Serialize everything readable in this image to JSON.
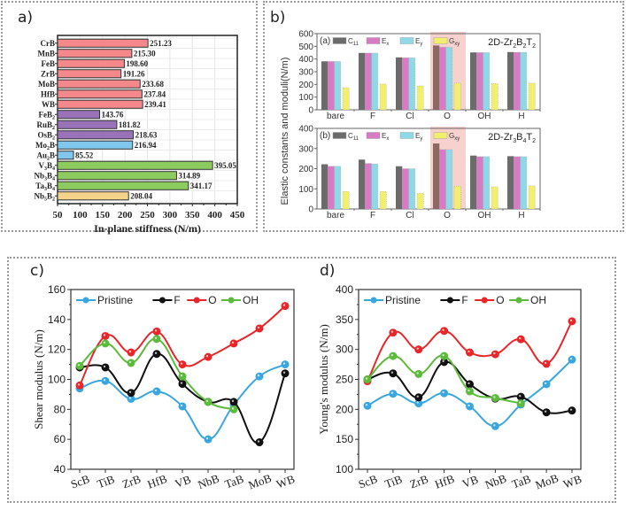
{
  "panels": {
    "a": {
      "label": "a)"
    },
    "b": {
      "label": "b)"
    },
    "c": {
      "label": "c)"
    },
    "d": {
      "label": "d)"
    }
  },
  "chart_data": [
    {
      "id": "a",
      "type": "bar",
      "orientation": "horizontal",
      "title": "",
      "xlabel": "In-plane stiffness (N/m)",
      "ylabel": "",
      "xlim": [
        50,
        450
      ],
      "xticks": [
        50,
        100,
        150,
        200,
        250,
        300,
        350,
        400,
        450
      ],
      "grid": true,
      "categories": [
        "CrB",
        "MnB",
        "FeB",
        "ZrB",
        "MoB",
        "HfB",
        "WB",
        "FeB2",
        "RuB2",
        "OsB2",
        "Mo2B",
        "Au2B",
        "V3B4",
        "Nb3B4",
        "Ta3B4",
        "Nb5B2"
      ],
      "category_labels": [
        {
          "base": "CrB",
          "sub": ""
        },
        {
          "base": "MnB",
          "sub": ""
        },
        {
          "base": "FeB",
          "sub": ""
        },
        {
          "base": "ZrB",
          "sub": ""
        },
        {
          "base": "MoB",
          "sub": ""
        },
        {
          "base": "HfB",
          "sub": ""
        },
        {
          "base": "WB",
          "sub": ""
        },
        {
          "base": "FeB",
          "sub": "2"
        },
        {
          "base": "RuB",
          "sub": "2"
        },
        {
          "base": "OsB",
          "sub": "2"
        },
        {
          "base": "Mo",
          "sub": "2",
          "tail": "B"
        },
        {
          "base": "Au",
          "sub": "2",
          "tail": "B"
        },
        {
          "base": "V",
          "sub": "3",
          "tail": "B",
          "sub2": "4"
        },
        {
          "base": "Nb",
          "sub": "3",
          "tail": "B",
          "sub2": "4"
        },
        {
          "base": "Ta",
          "sub": "3",
          "tail": "B",
          "sub2": "4"
        },
        {
          "base": "Nb",
          "sub": "5",
          "tail": "B",
          "sub2": "2"
        }
      ],
      "values": [
        251.23,
        215.3,
        198.6,
        191.26,
        233.68,
        237.84,
        239.41,
        143.76,
        181.82,
        218.63,
        216.94,
        85.52,
        395.05,
        314.89,
        341.17,
        208.04
      ],
      "value_labels": [
        "251.23",
        "215.30",
        "198.60",
        "191.26",
        "233.68",
        "237.84",
        "239.41",
        "143.76",
        "181.82",
        "218.63",
        "216.94",
        "85.52",
        "395.05",
        "314.89",
        "341.17",
        "208.04"
      ],
      "groups": [
        "MB",
        "MB",
        "MB",
        "MB",
        "MB",
        "MB",
        "MB",
        "MB2",
        "MB2",
        "MB2",
        "M2B",
        "M2B",
        "M3B4",
        "M3B4",
        "M3B4",
        "M5B2"
      ],
      "group_colors": {
        "MB": "#f4888a",
        "MB2": "#9a72b8",
        "M2B": "#7fc7ec",
        "M3B4": "#8ccc5e",
        "M5B2": "#f4d48a"
      }
    },
    {
      "id": "b-top",
      "type": "bar",
      "title": "2D-Zr2B2T2",
      "title_parts": {
        "base": "2D-Zr",
        "s1": "2",
        "m": "B",
        "s2": "2",
        "t": "T",
        "s3": "2"
      },
      "subplot_tag": "(a)",
      "ylabel": "Elastic constants and moduli(N/m)",
      "ylim": [
        0,
        600
      ],
      "yticks": [
        0,
        100,
        200,
        300,
        400,
        500,
        600
      ],
      "categories": [
        "bare",
        "F",
        "Cl",
        "O",
        "OH",
        "H"
      ],
      "highlight_category": "O",
      "series": [
        {
          "name": "C11",
          "sub": "11",
          "base": "C",
          "color": "#6b6b6b",
          "values": [
            382,
            448,
            413,
            507,
            452,
            455
          ]
        },
        {
          "name": "Ex",
          "sub": "x",
          "base": "E",
          "color": "#d97bc4",
          "values": [
            381,
            447,
            410,
            493,
            451,
            453
          ]
        },
        {
          "name": "Ey",
          "sub": "y",
          "base": "E",
          "color": "#8fd8e6",
          "values": [
            381,
            447,
            410,
            493,
            451,
            453
          ]
        },
        {
          "name": "Gxy",
          "sub": "xy",
          "base": "G",
          "color": "#f2ee6e",
          "values": [
            175,
            203,
            188,
            210,
            207,
            210
          ]
        }
      ]
    },
    {
      "id": "b-bottom",
      "type": "bar",
      "title": "2D-Zr3B4T2",
      "title_parts": {
        "base": "2D-Zr",
        "s1": "3",
        "m": "B",
        "s2": "4",
        "t": "T",
        "s3": "2"
      },
      "subplot_tag": "(b)",
      "ylabel": "Elastic constants and moduli(N/m)",
      "ylim": [
        0,
        400
      ],
      "yticks": [
        0,
        100,
        200,
        300,
        400
      ],
      "categories": [
        "bare",
        "F",
        "Cl",
        "O",
        "OH",
        "H"
      ],
      "highlight_category": "O",
      "series": [
        {
          "name": "C11",
          "sub": "11",
          "base": "C",
          "color": "#6b6b6b",
          "values": [
            222,
            245,
            212,
            325,
            265,
            262
          ]
        },
        {
          "name": "Ex",
          "sub": "x",
          "base": "E",
          "color": "#d97bc4",
          "values": [
            212,
            226,
            200,
            295,
            260,
            260
          ]
        },
        {
          "name": "Ey",
          "sub": "y",
          "base": "E",
          "color": "#8fd8e6",
          "values": [
            212,
            224,
            200,
            295,
            260,
            260
          ]
        },
        {
          "name": "Gxy",
          "sub": "xy",
          "base": "G",
          "color": "#f2ee6e",
          "values": [
            87,
            87,
            78,
            113,
            110,
            115
          ]
        }
      ]
    },
    {
      "id": "c",
      "type": "line",
      "title": "",
      "xlabel": "",
      "ylabel": "Shear modulus (N/m)",
      "ylim": [
        40,
        160
      ],
      "yticks": [
        40,
        60,
        80,
        100,
        120,
        140,
        160
      ],
      "categories": [
        "ScB",
        "TiB",
        "ZrB",
        "HfB",
        "VB",
        "NbB",
        "TaB",
        "MoB",
        "WB"
      ],
      "legend": "top-left",
      "series": [
        {
          "name": "Pristine",
          "color": "#3aa6e0",
          "values": [
            94,
            99,
            87,
            92,
            82,
            60,
            83,
            102,
            110
          ]
        },
        {
          "name": "F",
          "color": "#111111",
          "values": [
            108,
            108,
            91,
            117,
            97,
            85,
            85,
            58,
            104
          ]
        },
        {
          "name": "O",
          "color": "#e8262a",
          "values": [
            96,
            129,
            118,
            132,
            110,
            115,
            124,
            134,
            149
          ]
        },
        {
          "name": "OH",
          "color": "#5cba3c",
          "values": [
            109,
            124,
            111,
            127,
            102,
            85,
            80,
            null,
            null
          ]
        }
      ]
    },
    {
      "id": "d",
      "type": "line",
      "title": "",
      "xlabel": "",
      "ylabel": "Young's modulus (N/m)",
      "ylim": [
        100,
        400
      ],
      "yticks": [
        100,
        150,
        200,
        250,
        300,
        350,
        400
      ],
      "categories": [
        "ScB",
        "TiB",
        "ZrB",
        "HfB",
        "VB",
        "NbB",
        "TaB",
        "MoB",
        "WB"
      ],
      "legend": "top-left",
      "series": [
        {
          "name": "Pristine",
          "color": "#3aa6e0",
          "values": [
            206,
            226,
            210,
            227,
            205,
            172,
            208,
            242,
            283
          ]
        },
        {
          "name": "F",
          "color": "#111111",
          "values": [
            250,
            260,
            220,
            279,
            242,
            218,
            221,
            195,
            198
          ]
        },
        {
          "name": "O",
          "color": "#e8262a",
          "values": [
            247,
            328,
            300,
            331,
            295,
            292,
            317,
            276,
            347
          ]
        },
        {
          "name": "OH",
          "color": "#5cba3c",
          "values": [
            250,
            289,
            259,
            289,
            230,
            219,
            210,
            null,
            null
          ]
        }
      ]
    }
  ]
}
